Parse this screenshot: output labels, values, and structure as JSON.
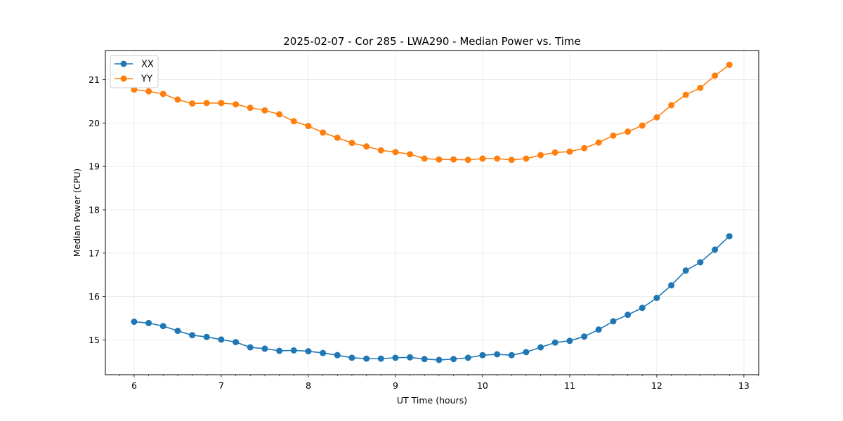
{
  "chart_data": {
    "type": "line",
    "title": "2025-02-07 - Cor 285 - LWA290 - Median Power vs. Time",
    "xlabel": "UT Time (hours)",
    "ylabel": "Median Power (CPU)",
    "xlim": [
      5.67,
      13.17
    ],
    "ylim": [
      14.2,
      21.67
    ],
    "xticks": [
      6,
      7,
      8,
      9,
      10,
      11,
      12,
      13
    ],
    "yticks": [
      15,
      16,
      17,
      18,
      19,
      20,
      21
    ],
    "grid": true,
    "legend_position": "upper-left",
    "x": [
      6.0,
      6.167,
      6.333,
      6.5,
      6.667,
      6.833,
      7.0,
      7.167,
      7.333,
      7.5,
      7.667,
      7.833,
      8.0,
      8.167,
      8.333,
      8.5,
      8.667,
      8.833,
      9.0,
      9.167,
      9.333,
      9.5,
      9.667,
      9.833,
      10.0,
      10.167,
      10.333,
      10.5,
      10.667,
      10.833,
      11.0,
      11.167,
      11.333,
      11.5,
      11.667,
      11.833,
      12.0,
      12.167,
      12.333,
      12.5,
      12.667,
      12.833
    ],
    "series": [
      {
        "name": "XX",
        "color": "#1f77b4",
        "values": [
          15.42,
          15.39,
          15.32,
          15.21,
          15.11,
          15.07,
          15.01,
          14.95,
          14.83,
          14.8,
          14.75,
          14.76,
          14.74,
          14.7,
          14.65,
          14.59,
          14.57,
          14.57,
          14.59,
          14.6,
          14.56,
          14.54,
          14.56,
          14.59,
          14.65,
          14.67,
          14.65,
          14.72,
          14.83,
          14.94,
          14.98,
          15.08,
          15.24,
          15.43,
          15.58,
          15.74,
          15.97,
          16.26,
          16.6,
          16.79,
          17.08,
          17.39
        ]
      },
      {
        "name": "YY",
        "color": "#ff7f0e",
        "values": [
          20.77,
          20.73,
          20.67,
          20.54,
          20.45,
          20.46,
          20.46,
          20.43,
          20.35,
          20.29,
          20.2,
          20.04,
          19.93,
          19.78,
          19.66,
          19.54,
          19.46,
          19.37,
          19.33,
          19.28,
          19.18,
          19.16,
          19.16,
          19.15,
          19.18,
          19.18,
          19.15,
          19.18,
          19.26,
          19.32,
          19.34,
          19.42,
          19.55,
          19.71,
          19.8,
          19.94,
          20.13,
          20.41,
          20.65,
          20.81,
          21.09,
          21.34
        ]
      }
    ]
  }
}
